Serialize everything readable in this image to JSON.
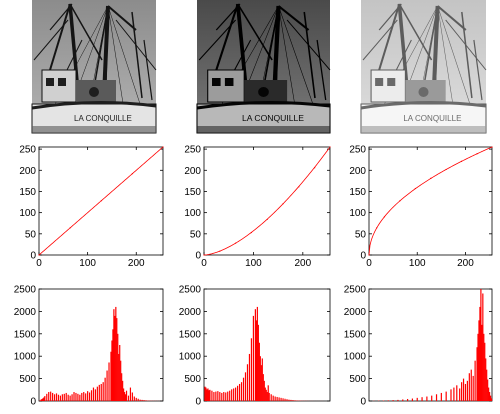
{
  "photos": [
    {
      "name": "photo-original",
      "tone": "original"
    },
    {
      "name": "photo-darkened",
      "tone": "darkened"
    },
    {
      "name": "photo-brightened",
      "tone": "brightened"
    }
  ],
  "photo_texts": [
    "LA CONQUILLE",
    "LA CONQUILLE",
    "LA CONQUILLE"
  ],
  "chart_data": [
    {
      "type": "line",
      "title": "",
      "xlabel": "",
      "ylabel": "",
      "xlim": [
        0,
        255
      ],
      "ylim": [
        0,
        255
      ],
      "xticks": [
        "0",
        "100",
        "200"
      ],
      "yticks": [
        "0",
        "50",
        "100",
        "150",
        "200",
        "250"
      ],
      "color": "#ff0000",
      "gamma": 1.0,
      "x": [
        0,
        64,
        128,
        192,
        255
      ],
      "y": [
        0,
        64,
        128,
        192,
        255
      ]
    },
    {
      "type": "line",
      "title": "",
      "xlabel": "",
      "ylabel": "",
      "xlim": [
        0,
        255
      ],
      "ylim": [
        0,
        255
      ],
      "xticks": [
        "0",
        "100",
        "200"
      ],
      "yticks": [
        "0",
        "50",
        "100",
        "150",
        "200",
        "250"
      ],
      "color": "#ff0000",
      "gamma": 1.6,
      "x": [
        0,
        32,
        64,
        96,
        128,
        160,
        192,
        224,
        255
      ],
      "y": [
        0,
        9,
        28,
        53,
        84,
        121,
        161,
        206,
        255
      ]
    },
    {
      "type": "line",
      "title": "",
      "xlabel": "",
      "ylabel": "",
      "xlim": [
        0,
        255
      ],
      "ylim": [
        0,
        255
      ],
      "xticks": [
        "0",
        "100",
        "200"
      ],
      "yticks": [
        "0",
        "50",
        "100",
        "150",
        "200",
        "250"
      ],
      "color": "#ff0000",
      "gamma": 0.5,
      "x": [
        0,
        16,
        32,
        64,
        96,
        128,
        160,
        192,
        224,
        255
      ],
      "y": [
        0,
        64,
        90,
        128,
        157,
        181,
        202,
        221,
        239,
        255
      ]
    },
    {
      "type": "bar",
      "title": "",
      "xlabel": "",
      "ylabel": "",
      "xlim": [
        0,
        255
      ],
      "ylim": [
        0,
        2500
      ],
      "xticks": [],
      "yticks": [
        "0",
        "500",
        "1000",
        "1500",
        "2000",
        "2500"
      ],
      "color": "#ff0000",
      "bins": [
        2,
        4,
        6,
        8,
        10,
        12,
        16,
        20,
        24,
        28,
        32,
        36,
        40,
        44,
        48,
        52,
        56,
        60,
        64,
        68,
        72,
        76,
        80,
        84,
        88,
        92,
        96,
        100,
        104,
        108,
        112,
        116,
        120,
        124,
        128,
        132,
        136,
        140,
        144,
        148,
        150,
        152,
        154,
        156,
        158,
        160,
        162,
        164,
        166,
        168,
        170,
        172,
        174,
        176,
        178,
        180,
        184,
        188,
        192,
        196,
        200,
        204,
        208,
        212,
        216,
        220,
        224,
        228,
        232,
        236,
        240,
        244,
        248,
        252
      ],
      "values": [
        10,
        30,
        45,
        60,
        80,
        110,
        160,
        200,
        210,
        180,
        150,
        170,
        140,
        120,
        150,
        160,
        180,
        140,
        120,
        150,
        200,
        180,
        160,
        140,
        180,
        200,
        170,
        220,
        190,
        240,
        300,
        260,
        320,
        360,
        380,
        420,
        520,
        680,
        860,
        1100,
        1350,
        1600,
        2050,
        1900,
        2100,
        1850,
        1500,
        1050,
        1250,
        900,
        620,
        450,
        280,
        200,
        150,
        230,
        120,
        300,
        190,
        100,
        70,
        50,
        30,
        25,
        20,
        15,
        10,
        8,
        6,
        5,
        4,
        3,
        2,
        1
      ]
    },
    {
      "type": "bar",
      "title": "",
      "xlabel": "",
      "ylabel": "",
      "xlim": [
        0,
        255
      ],
      "ylim": [
        0,
        2500
      ],
      "xticks": [],
      "yticks": [
        "0",
        "500",
        "1000",
        "1500",
        "2000",
        "2500"
      ],
      "color": "#ff0000",
      "bins": [
        2,
        4,
        6,
        8,
        10,
        12,
        16,
        20,
        24,
        28,
        32,
        36,
        40,
        44,
        48,
        52,
        56,
        60,
        64,
        68,
        72,
        76,
        80,
        84,
        88,
        92,
        96,
        100,
        104,
        106,
        108,
        110,
        112,
        114,
        116,
        118,
        120,
        122,
        124,
        126,
        128,
        130,
        132,
        136,
        140,
        144,
        148,
        152,
        156,
        160,
        164,
        168,
        172,
        176,
        180,
        184,
        188,
        192,
        196,
        200,
        204,
        208,
        212,
        216,
        220,
        224,
        228,
        232,
        236,
        240,
        244,
        248,
        252
      ],
      "values": [
        320,
        300,
        260,
        280,
        240,
        250,
        230,
        200,
        210,
        220,
        200,
        180,
        200,
        190,
        210,
        230,
        260,
        280,
        300,
        340,
        380,
        420,
        520,
        640,
        820,
        1050,
        1400,
        1900,
        2050,
        1800,
        2100,
        1700,
        1300,
        1000,
        800,
        950,
        600,
        450,
        300,
        250,
        200,
        350,
        180,
        150,
        120,
        100,
        90,
        80,
        70,
        60,
        50,
        40,
        30,
        25,
        20,
        15,
        12,
        10,
        8,
        6,
        5,
        4,
        3,
        2,
        2,
        1,
        1,
        1,
        1,
        1,
        0,
        0,
        0
      ]
    },
    {
      "type": "bar",
      "title": "",
      "xlabel": "",
      "ylabel": "",
      "xlim": [
        0,
        255
      ],
      "ylim": [
        0,
        2500
      ],
      "xticks": [],
      "yticks": [
        "0",
        "500",
        "1000",
        "1500",
        "2000",
        "2500"
      ],
      "color": "#ff0000",
      "bins": [
        10,
        20,
        30,
        40,
        50,
        60,
        70,
        80,
        90,
        100,
        110,
        120,
        130,
        140,
        150,
        160,
        170,
        176,
        182,
        188,
        192,
        196,
        200,
        204,
        208,
        212,
        216,
        220,
        224,
        226,
        228,
        230,
        232,
        234,
        236,
        238,
        240,
        242,
        244,
        246,
        248,
        250,
        252,
        254
      ],
      "values": [
        5,
        8,
        10,
        15,
        20,
        25,
        35,
        45,
        55,
        70,
        85,
        100,
        120,
        150,
        180,
        210,
        260,
        300,
        350,
        280,
        420,
        500,
        380,
        450,
        620,
        700,
        560,
        900,
        1200,
        1500,
        1800,
        2100,
        2500,
        1700,
        2400,
        1500,
        1300,
        950,
        700,
        480,
        300,
        200,
        120,
        60
      ]
    }
  ]
}
